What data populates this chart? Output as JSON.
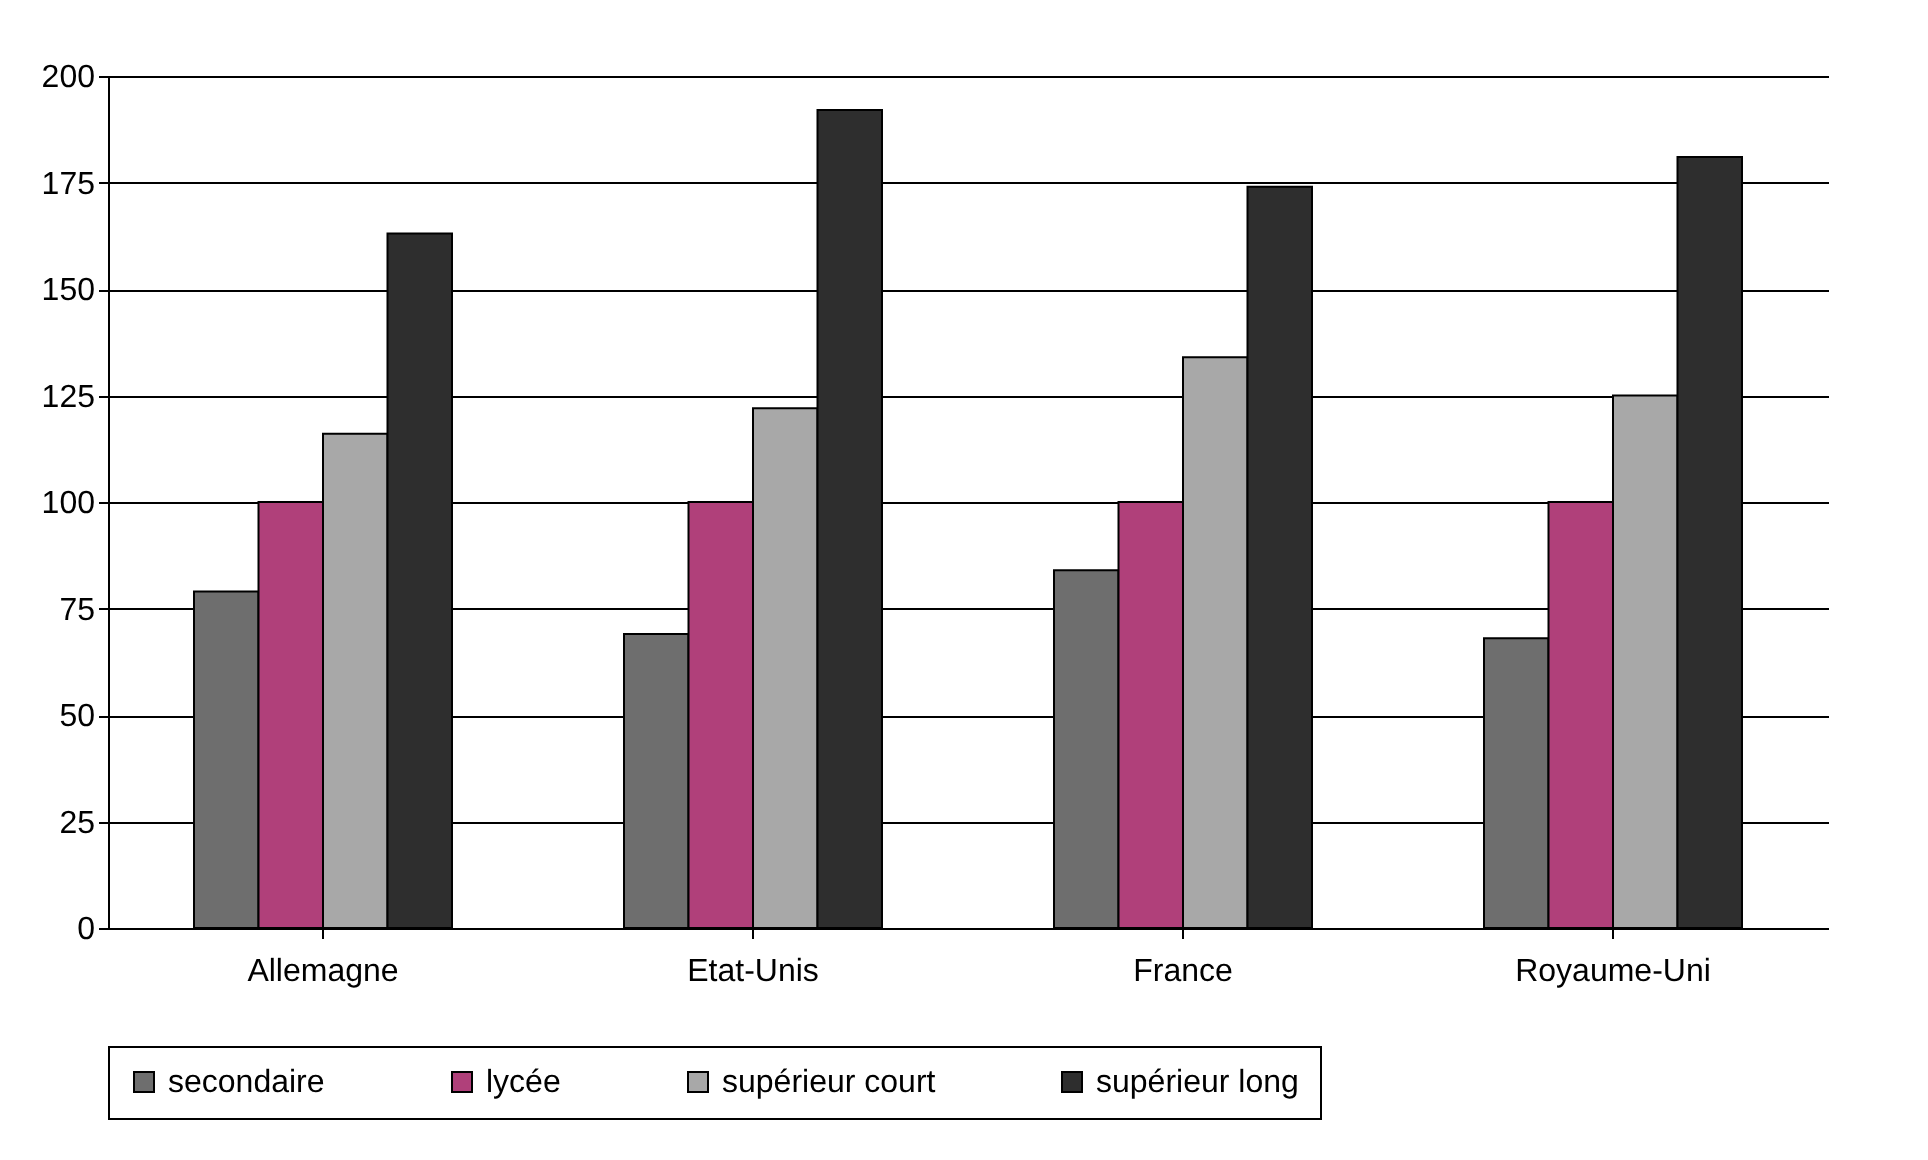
{
  "chart_data": {
    "type": "bar",
    "categories": [
      "Allemagne",
      "Etat-Unis",
      "France",
      "Royaume-Uni"
    ],
    "series": [
      {
        "name": "secondaire",
        "color": "#6e6e6e",
        "values": [
          79,
          69,
          84,
          68
        ]
      },
      {
        "name": "lycée",
        "color": "#b0407a",
        "values": [
          100,
          100,
          100,
          100
        ]
      },
      {
        "name": "supérieur court",
        "color": "#a8a8a8",
        "values": [
          116,
          122,
          134,
          125
        ]
      },
      {
        "name": "supérieur long",
        "color": "#2e2e2e",
        "values": [
          163,
          192,
          174,
          181
        ]
      }
    ],
    "ylim": [
      0,
      200
    ],
    "yticks": [
      0,
      25,
      50,
      75,
      100,
      125,
      150,
      175,
      200
    ],
    "grid": "y",
    "legend": "bottom"
  }
}
